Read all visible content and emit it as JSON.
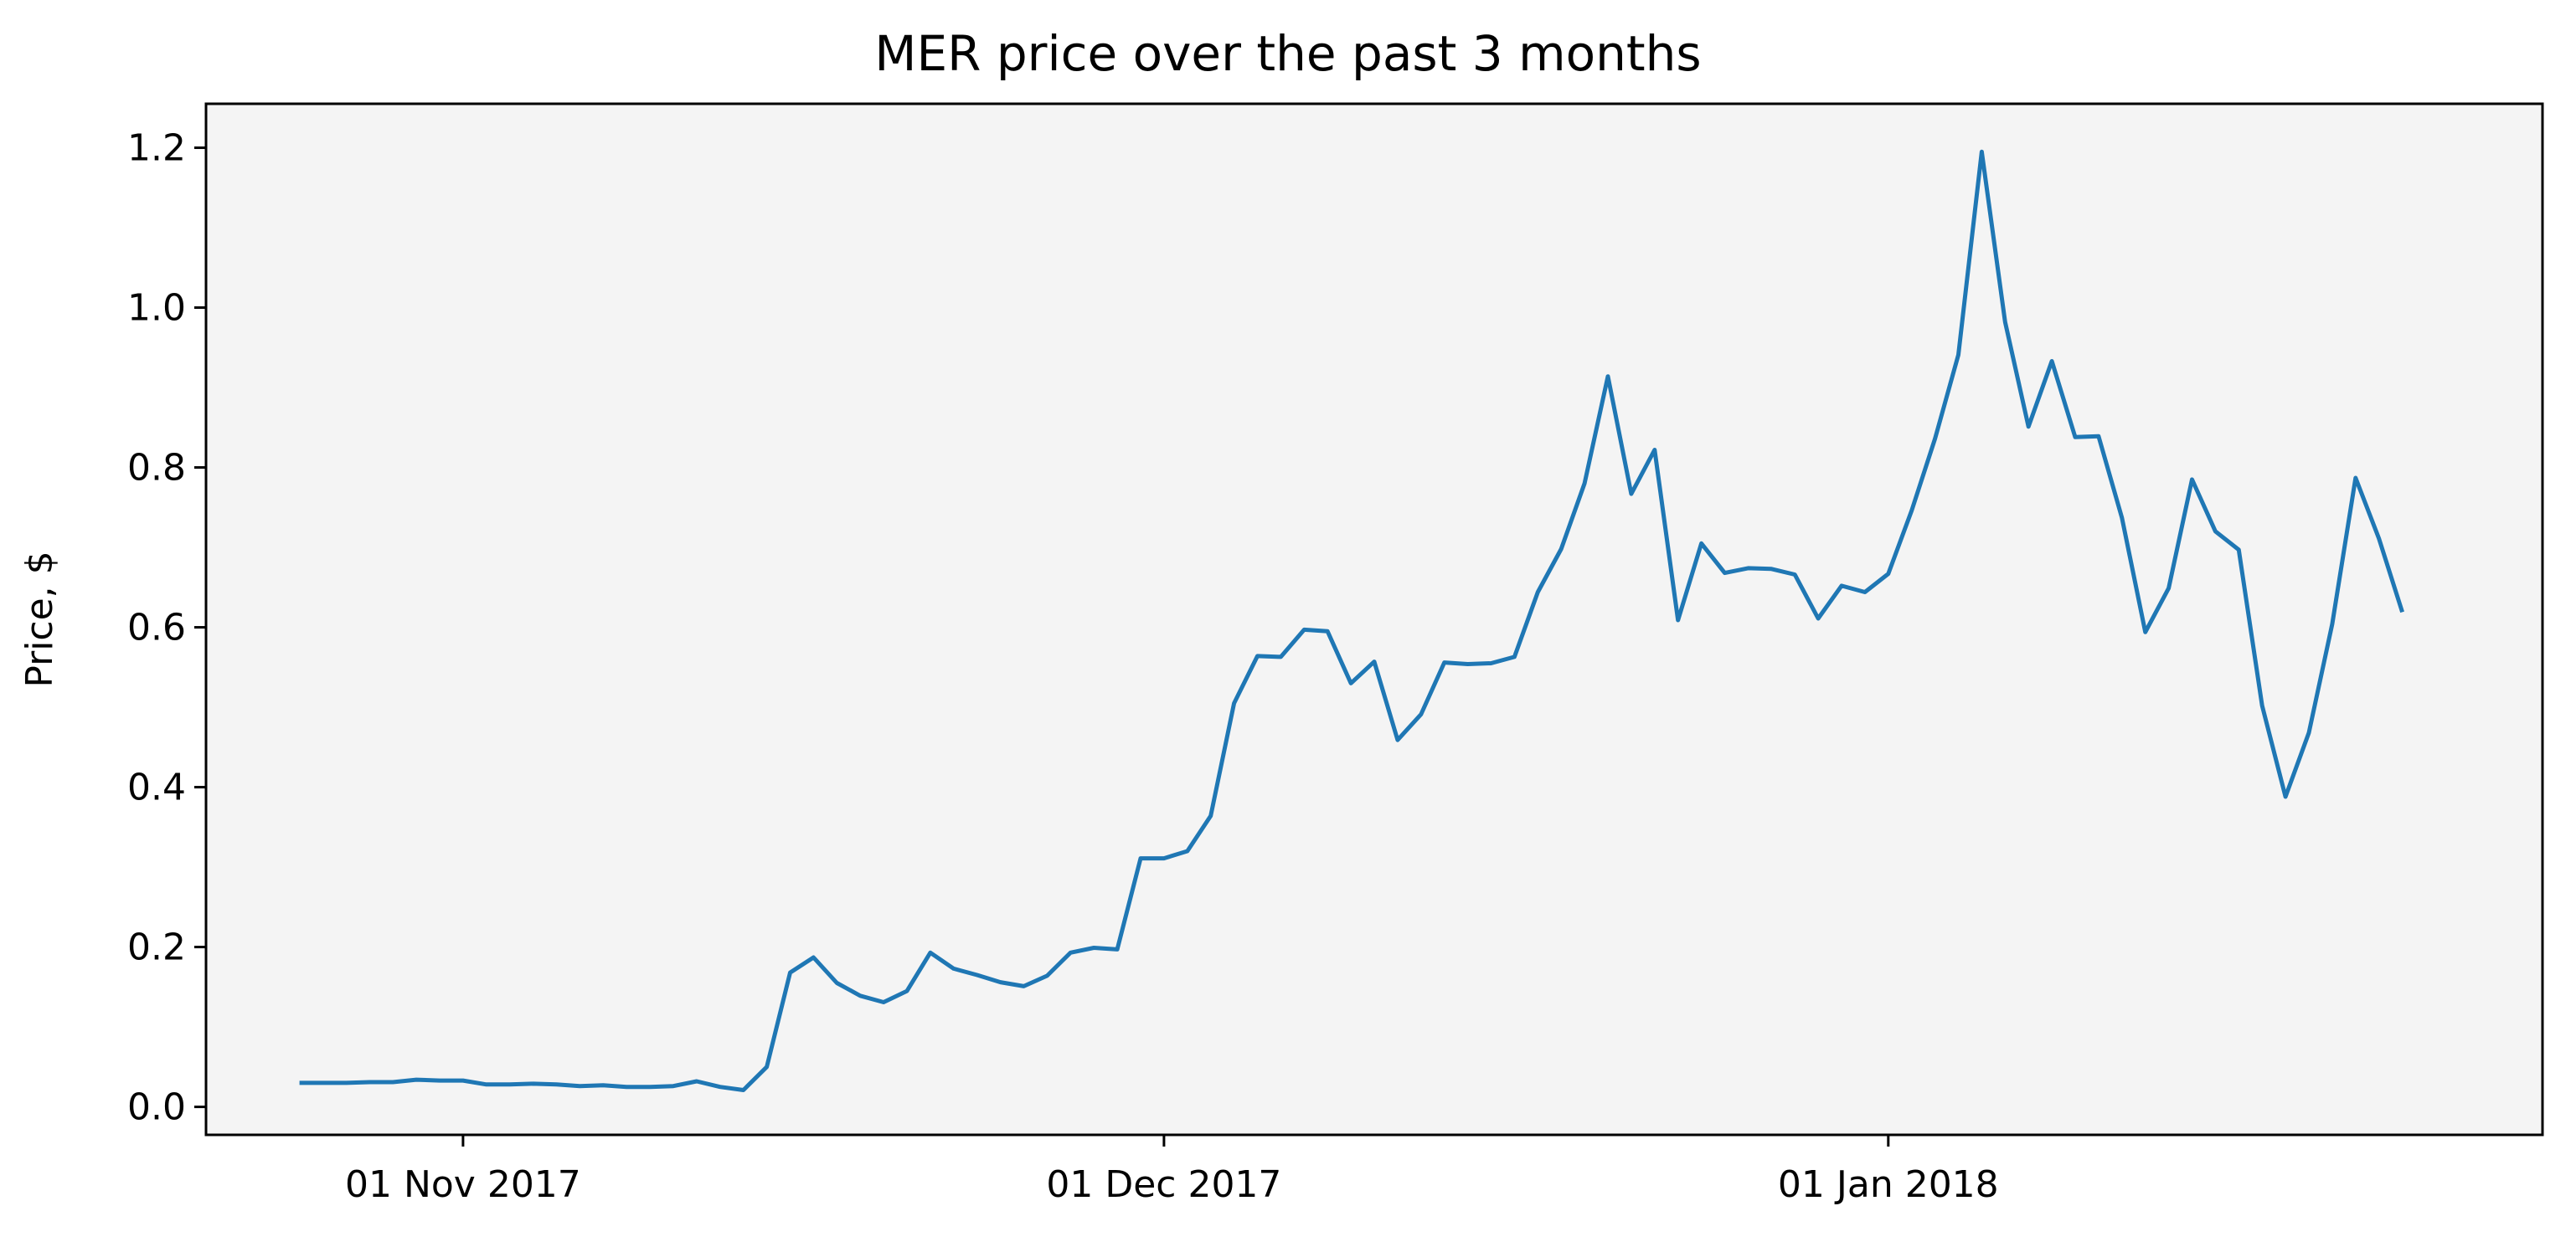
{
  "chart_data": {
    "type": "line",
    "title": "MER price over the past 3 months",
    "xlabel": "",
    "ylabel": "Price, $",
    "ylim": [
      -0.035,
      1.255
    ],
    "xlim": [
      "2017-10-21",
      "2018-01-29"
    ],
    "grid": false,
    "colors": {
      "background": "#f4f4f4",
      "line": "#1f77b4"
    },
    "x_ticks": [
      {
        "date": "2017-11-01",
        "label": "01 Nov 2017"
      },
      {
        "date": "2017-12-01",
        "label": "01 Dec 2017"
      },
      {
        "date": "2018-01-01",
        "label": "01 Jan 2018"
      }
    ],
    "y_ticks": [
      {
        "value": 0.0,
        "label": "0.0"
      },
      {
        "value": 0.2,
        "label": "0.2"
      },
      {
        "value": 0.4,
        "label": "0.4"
      },
      {
        "value": 0.6,
        "label": "0.6"
      },
      {
        "value": 0.8,
        "label": "0.8"
      },
      {
        "value": 1.0,
        "label": "1.0"
      },
      {
        "value": 1.2,
        "label": "1.2"
      }
    ],
    "series": [
      {
        "values": [
          [
            "2017-10-25",
            0.03
          ],
          [
            "2017-10-26",
            0.03
          ],
          [
            "2017-10-27",
            0.03
          ],
          [
            "2017-10-28",
            0.031
          ],
          [
            "2017-10-29",
            0.031
          ],
          [
            "2017-10-30",
            0.034
          ],
          [
            "2017-10-31",
            0.033
          ],
          [
            "2017-11-01",
            0.033
          ],
          [
            "2017-11-02",
            0.028
          ],
          [
            "2017-11-03",
            0.028
          ],
          [
            "2017-11-04",
            0.029
          ],
          [
            "2017-11-05",
            0.028
          ],
          [
            "2017-11-06",
            0.026
          ],
          [
            "2017-11-07",
            0.027
          ],
          [
            "2017-11-08",
            0.025
          ],
          [
            "2017-11-09",
            0.025
          ],
          [
            "2017-11-10",
            0.026
          ],
          [
            "2017-11-11",
            0.032
          ],
          [
            "2017-11-12",
            0.025
          ],
          [
            "2017-11-13",
            0.021
          ],
          [
            "2017-11-14",
            0.05
          ],
          [
            "2017-11-15",
            0.168
          ],
          [
            "2017-11-16",
            0.187
          ],
          [
            "2017-11-17",
            0.155
          ],
          [
            "2017-11-18",
            0.139
          ],
          [
            "2017-11-19",
            0.131
          ],
          [
            "2017-11-20",
            0.145
          ],
          [
            "2017-11-21",
            0.193
          ],
          [
            "2017-11-22",
            0.173
          ],
          [
            "2017-11-23",
            0.165
          ],
          [
            "2017-11-24",
            0.156
          ],
          [
            "2017-11-25",
            0.151
          ],
          [
            "2017-11-26",
            0.164
          ],
          [
            "2017-11-27",
            0.193
          ],
          [
            "2017-11-28",
            0.199
          ],
          [
            "2017-11-29",
            0.197
          ],
          [
            "2017-11-30",
            0.311
          ],
          [
            "2017-12-01",
            0.311
          ],
          [
            "2017-12-02",
            0.32
          ],
          [
            "2017-12-03",
            0.364
          ],
          [
            "2017-12-04",
            0.505
          ],
          [
            "2017-12-05",
            0.564
          ],
          [
            "2017-12-06",
            0.563
          ],
          [
            "2017-12-07",
            0.597
          ],
          [
            "2017-12-08",
            0.595
          ],
          [
            "2017-12-09",
            0.53
          ],
          [
            "2017-12-10",
            0.557
          ],
          [
            "2017-12-11",
            0.459
          ],
          [
            "2017-12-12",
            0.491
          ],
          [
            "2017-12-13",
            0.556
          ],
          [
            "2017-12-14",
            0.554
          ],
          [
            "2017-12-15",
            0.555
          ],
          [
            "2017-12-16",
            0.563
          ],
          [
            "2017-12-17",
            0.644
          ],
          [
            "2017-12-18",
            0.698
          ],
          [
            "2017-12-19",
            0.78
          ],
          [
            "2017-12-20",
            0.914
          ],
          [
            "2017-12-21",
            0.767
          ],
          [
            "2017-12-22",
            0.822
          ],
          [
            "2017-12-23",
            0.609
          ],
          [
            "2017-12-24",
            0.705
          ],
          [
            "2017-12-25",
            0.668
          ],
          [
            "2017-12-26",
            0.674
          ],
          [
            "2017-12-27",
            0.673
          ],
          [
            "2017-12-28",
            0.666
          ],
          [
            "2017-12-29",
            0.611
          ],
          [
            "2017-12-30",
            0.652
          ],
          [
            "2017-12-31",
            0.644
          ],
          [
            "2018-01-01",
            0.667
          ],
          [
            "2018-01-02",
            0.746
          ],
          [
            "2018-01-03",
            0.836
          ],
          [
            "2018-01-04",
            0.941
          ],
          [
            "2018-01-05",
            1.195
          ],
          [
            "2018-01-06",
            0.982
          ],
          [
            "2018-01-07",
            0.851
          ],
          [
            "2018-01-08",
            0.933
          ],
          [
            "2018-01-09",
            0.838
          ],
          [
            "2018-01-10",
            0.839
          ],
          [
            "2018-01-11",
            0.737
          ],
          [
            "2018-01-12",
            0.594
          ],
          [
            "2018-01-13",
            0.649
          ],
          [
            "2018-01-14",
            0.785
          ],
          [
            "2018-01-15",
            0.72
          ],
          [
            "2018-01-16",
            0.697
          ],
          [
            "2018-01-17",
            0.502
          ],
          [
            "2018-01-18",
            0.388
          ],
          [
            "2018-01-19",
            0.468
          ],
          [
            "2018-01-20",
            0.604
          ],
          [
            "2018-01-21",
            0.787
          ],
          [
            "2018-01-22",
            0.711
          ],
          [
            "2018-01-23",
            0.619
          ]
        ]
      }
    ]
  }
}
